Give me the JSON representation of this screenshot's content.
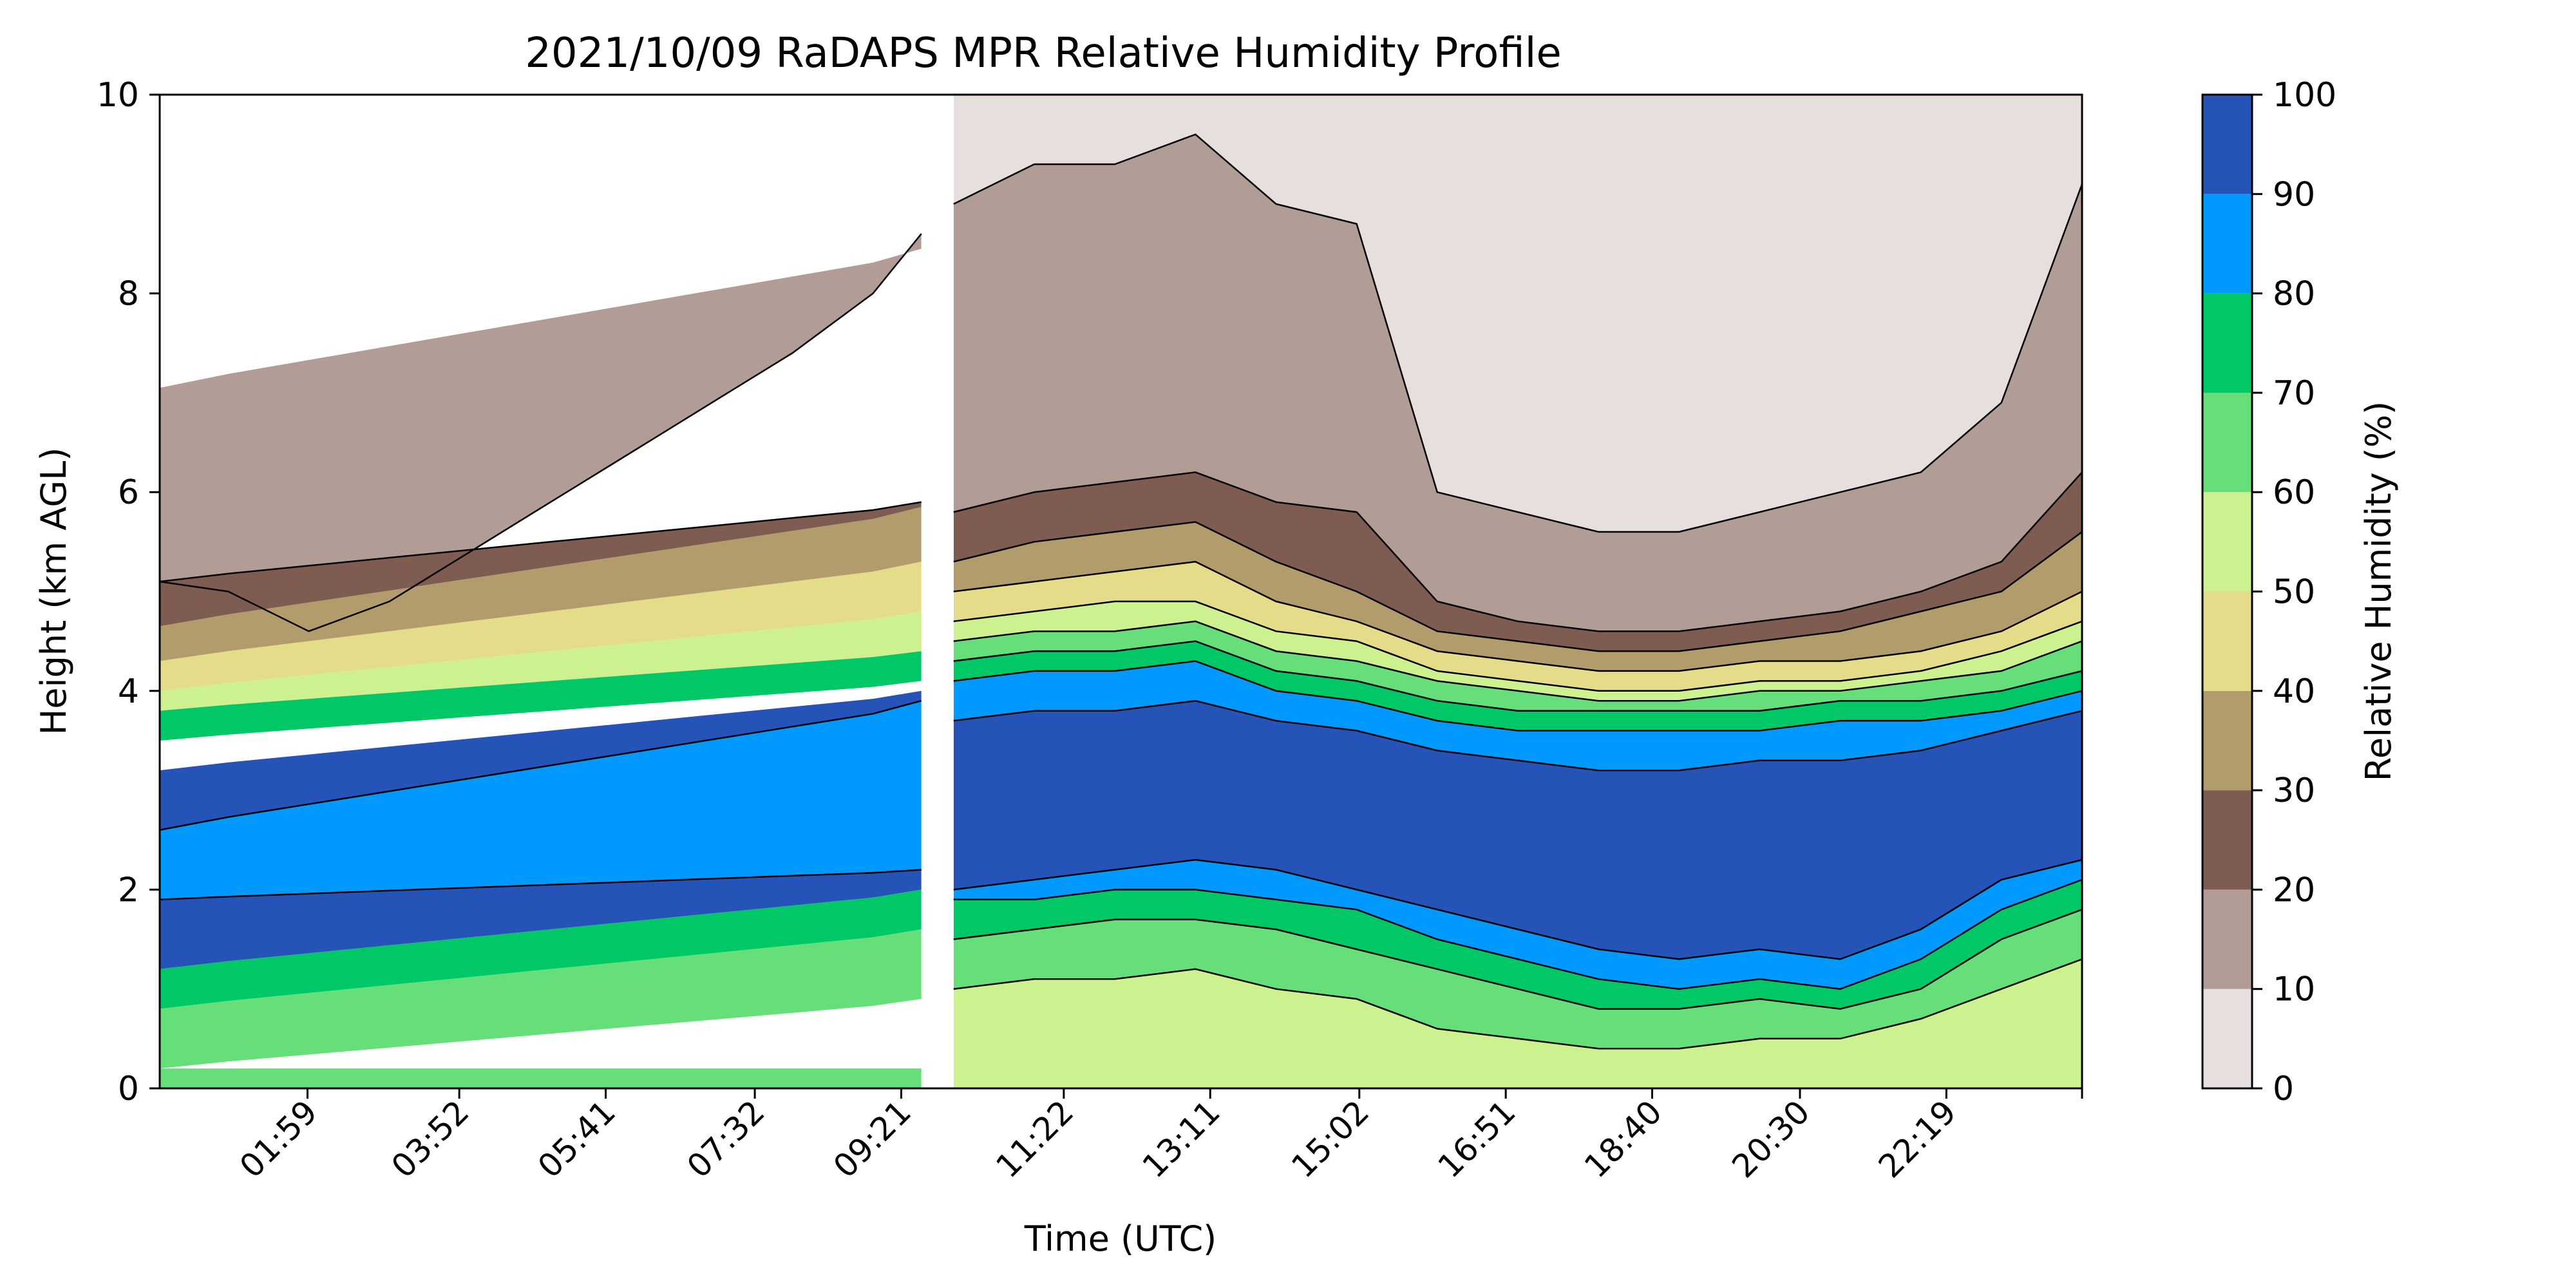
{
  "chart_data": {
    "type": "area",
    "title": "2021/10/09 RaDAPS MPR Relative Humidity Profile",
    "xlabel": "Time (UTC)",
    "ylabel": "Height (km AGL)",
    "x_ticks": [
      "01:59",
      "03:52",
      "05:41",
      "07:32",
      "09:21",
      "11:22",
      "13:11",
      "15:02",
      "16:51",
      "18:40",
      "20:30",
      "22:19"
    ],
    "xlim": [
      "00:09",
      "24:00"
    ],
    "ylim": [
      0,
      10
    ],
    "y_ticks": [
      0,
      2,
      4,
      6,
      8,
      10
    ],
    "data_gap": [
      "09:36",
      "10:00"
    ],
    "colorbar": {
      "label": "Relative Humidity (%)",
      "ticks": [
        0,
        10,
        20,
        30,
        40,
        50,
        60,
        70,
        80,
        90,
        100
      ],
      "bins": [
        {
          "range": [
            0,
            10
          ],
          "color": "#e6dfdd"
        },
        {
          "range": [
            10,
            20
          ],
          "color": "#b29c96"
        },
        {
          "range": [
            20,
            30
          ],
          "color": "#7f5c52"
        },
        {
          "range": [
            30,
            40
          ],
          "color": "#b39c6c"
        },
        {
          "range": [
            40,
            50
          ],
          "color": "#e5dc8a"
        },
        {
          "range": [
            50,
            60
          ],
          "color": "#ccf18e"
        },
        {
          "range": [
            60,
            70
          ],
          "color": "#66df7a"
        },
        {
          "range": [
            70,
            80
          ],
          "color": "#00c867"
        },
        {
          "range": [
            80,
            90
          ],
          "color": "#0199fe"
        },
        {
          "range": [
            90,
            100
          ],
          "color": "#2553b7"
        }
      ]
    },
    "series": [
      {
        "times": [
          "00:09",
          "01:00",
          "02:00",
          "03:00",
          "04:00",
          "05:00",
          "06:00",
          "07:00",
          "08:00",
          "09:00",
          "09:36"
        ],
        "contour_heights_km_at_rh": {
          "10": [
            5.1,
            5.0,
            4.6,
            4.9,
            5.4,
            5.9,
            6.4,
            6.9,
            7.4,
            8.0,
            8.6
          ]
        }
      },
      {
        "times": [
          "10:00",
          "11:00",
          "12:00",
          "13:00",
          "14:00",
          "15:00",
          "16:00",
          "17:00",
          "18:00",
          "19:00",
          "20:00",
          "21:00",
          "22:00",
          "23:00",
          "24:00"
        ],
        "contour_heights_km_at_rh": {
          "10": [
            8.9,
            9.3,
            9.3,
            9.6,
            8.9,
            8.7,
            6.0,
            5.8,
            5.6,
            5.6,
            5.8,
            6.0,
            6.2,
            6.9,
            9.1
          ],
          "20": [
            5.8,
            6.0,
            6.1,
            6.2,
            5.9,
            5.8,
            4.9,
            4.7,
            4.6,
            4.6,
            4.7,
            4.8,
            5.0,
            5.3,
            6.2
          ],
          "30": [
            5.3,
            5.5,
            5.6,
            5.7,
            5.3,
            5.0,
            4.6,
            4.5,
            4.4,
            4.4,
            4.5,
            4.6,
            4.8,
            5.0,
            5.6
          ],
          "40": [
            5.0,
            5.1,
            5.2,
            5.3,
            4.9,
            4.7,
            4.4,
            4.3,
            4.2,
            4.2,
            4.3,
            4.3,
            4.4,
            4.6,
            5.0
          ],
          "50": [
            4.7,
            4.8,
            4.9,
            4.9,
            4.6,
            4.5,
            4.2,
            4.1,
            4.0,
            4.0,
            4.1,
            4.1,
            4.2,
            4.4,
            4.7
          ],
          "60": [
            4.5,
            4.6,
            4.6,
            4.7,
            4.4,
            4.3,
            4.1,
            4.0,
            3.9,
            3.9,
            4.0,
            4.0,
            4.1,
            4.2,
            4.5
          ],
          "70": [
            4.3,
            4.4,
            4.4,
            4.5,
            4.2,
            4.1,
            3.9,
            3.8,
            3.8,
            3.8,
            3.8,
            3.9,
            3.9,
            4.0,
            4.2
          ],
          "80": [
            4.1,
            4.2,
            4.2,
            4.3,
            4.0,
            3.9,
            3.7,
            3.6,
            3.6,
            3.6,
            3.6,
            3.7,
            3.7,
            3.8,
            4.0
          ],
          "90": [
            3.7,
            3.8,
            3.8,
            3.9,
            3.7,
            3.6,
            3.4,
            3.3,
            3.2,
            3.2,
            3.3,
            3.3,
            3.4,
            3.6,
            3.8
          ],
          "90_lower": [
            2.0,
            2.1,
            2.2,
            2.3,
            2.2,
            2.0,
            1.8,
            1.6,
            1.4,
            1.3,
            1.4,
            1.3,
            1.6,
            2.1,
            2.3
          ],
          "80_lower": [
            1.9,
            1.9,
            2.0,
            2.0,
            1.9,
            1.8,
            1.5,
            1.3,
            1.1,
            1.0,
            1.1,
            1.0,
            1.3,
            1.8,
            2.1
          ],
          "70_lower": [
            1.5,
            1.6,
            1.7,
            1.7,
            1.6,
            1.4,
            1.2,
            1.0,
            0.8,
            0.8,
            0.9,
            0.8,
            1.0,
            1.5,
            1.8
          ],
          "60_lower": [
            1.0,
            1.1,
            1.1,
            1.2,
            1.0,
            0.9,
            0.6,
            0.5,
            0.4,
            0.4,
            0.5,
            0.5,
            0.7,
            1.0,
            1.3
          ]
        }
      }
    ]
  }
}
